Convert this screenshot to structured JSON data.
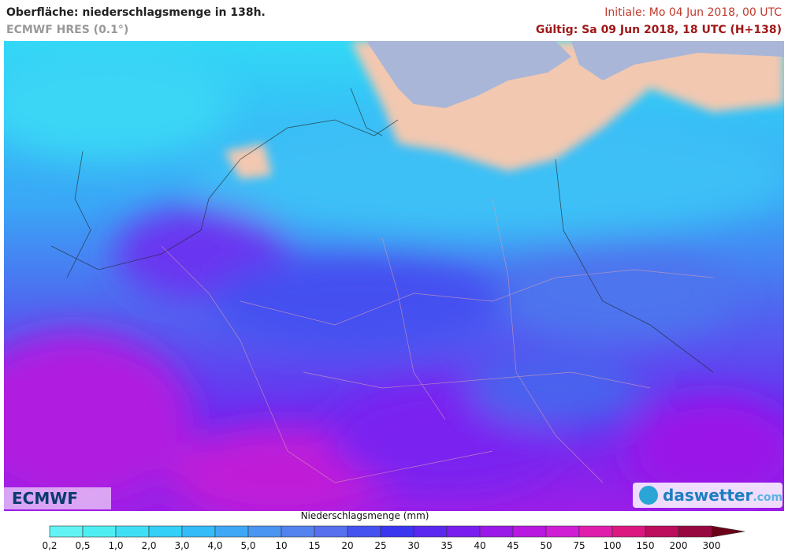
{
  "header": {
    "title": "Oberfläche: niederschlagsmenge in 138h.",
    "model": "ECMWF HRES (0.1°)",
    "initial": "Initiale: Mo 04 Jun 2018, 00 UTC",
    "valid": "Gültig: Sa 09 Jun 2018, 18 UTC (H+138)"
  },
  "logos": {
    "left": "ECMWF",
    "right": "daswetter",
    "right_suffix": ".com"
  },
  "legend": {
    "title": "Niederschlagsmenge (mm)",
    "labels": [
      "0,2",
      "0,5",
      "1,0",
      "2,0",
      "3,0",
      "4,0",
      "5,0",
      "10",
      "15",
      "20",
      "25",
      "30",
      "35",
      "40",
      "45",
      "50",
      "75",
      "100",
      "150",
      "200",
      "300"
    ],
    "colors": [
      "#62f4f4",
      "#4eeef2",
      "#3fe0f6",
      "#34d0f8",
      "#34bcf8",
      "#3ea8f6",
      "#4a94f2",
      "#5482ee",
      "#5670ee",
      "#4652f0",
      "#3a36f0",
      "#5a28f0",
      "#7a1ef0",
      "#9a18e8",
      "#b818e0",
      "#d01ed4",
      "#e01eac",
      "#dc1880",
      "#bc0e5c",
      "#980840"
    ],
    "overflow_color": "#6a0018"
  }
}
